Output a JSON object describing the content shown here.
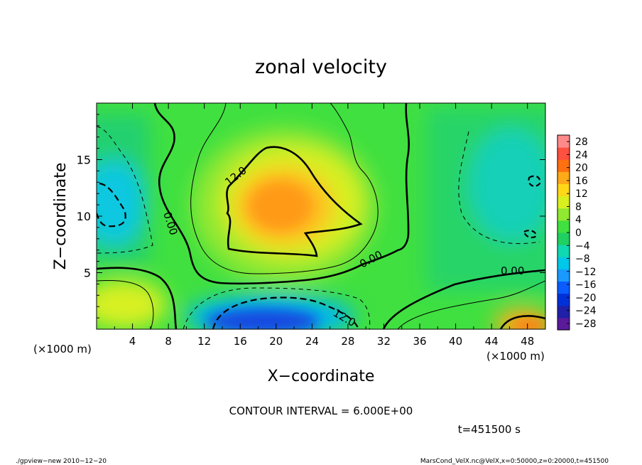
{
  "chart_data": {
    "type": "heatmap",
    "title": "zonal velocity",
    "xlabel": "X−coordinate",
    "ylabel": "Z−coordinate",
    "x_unit": "(×1000 m)",
    "xlim": [
      0,
      50
    ],
    "ylim": [
      0,
      20
    ],
    "x_ticks": [
      4,
      8,
      12,
      16,
      20,
      24,
      28,
      32,
      36,
      40,
      44,
      48
    ],
    "y_ticks": [
      5,
      10,
      15
    ],
    "colorbar_ticks": [
      "28",
      "24",
      "20",
      "16",
      "12",
      "8",
      "4",
      "0",
      "−4",
      "−8",
      "−12",
      "−16",
      "−20",
      "−24",
      "−28"
    ],
    "colorbar_range": [
      -30,
      30
    ],
    "colorbar_colors": [
      "#5a1a9a",
      "#2020a8",
      "#0030d8",
      "#0a5cff",
      "#1a9aff",
      "#00c8e8",
      "#10d8b0",
      "#20d060",
      "#40e040",
      "#90e830",
      "#d8f020",
      "#ffd818",
      "#ffaa18",
      "#ff7010",
      "#ff5040",
      "#ff8a8a"
    ],
    "contour_labels": [
      "12.0",
      "0.00",
      "0.00",
      "0.00",
      "12.0"
    ],
    "contour_interval_text": "CONTOUR INTERVAL = 6.000E+00",
    "time_text": "t=451500 s",
    "footer_left": "./gpview−new  2010−12−20",
    "footer_right": "MarsCond_VelX.nc@VelX,x=0:50000,z=0:20000,t=451500",
    "regions": [
      {
        "name": "positive-core",
        "value": 14,
        "center": [
          21,
          11.5
        ],
        "x_range": [
          14,
          30
        ],
        "z_range": [
          6.5,
          16
        ]
      },
      {
        "name": "negative-core",
        "value": -18,
        "center": [
          20,
          0.7
        ],
        "x_range": [
          13,
          28
        ],
        "z_range": [
          0,
          2.5
        ]
      },
      {
        "name": "west-negative",
        "value": -9,
        "center": [
          1.5,
          10
        ],
        "x_range": [
          0,
          5
        ],
        "z_range": [
          7.5,
          14
        ]
      },
      {
        "name": "east-negative",
        "value": -6,
        "center": [
          48,
          12
        ],
        "x_range": [
          40,
          50
        ],
        "z_range": [
          6,
          17
        ]
      },
      {
        "name": "southwest-positive",
        "value": 8,
        "center": [
          3,
          2.5
        ],
        "x_range": [
          0,
          7
        ],
        "z_range": [
          0,
          4
        ]
      },
      {
        "name": "southeast-positive",
        "value": 14,
        "center": [
          47,
          0.8
        ],
        "x_range": [
          44,
          50
        ],
        "z_range": [
          0,
          1.5
        ]
      }
    ]
  }
}
